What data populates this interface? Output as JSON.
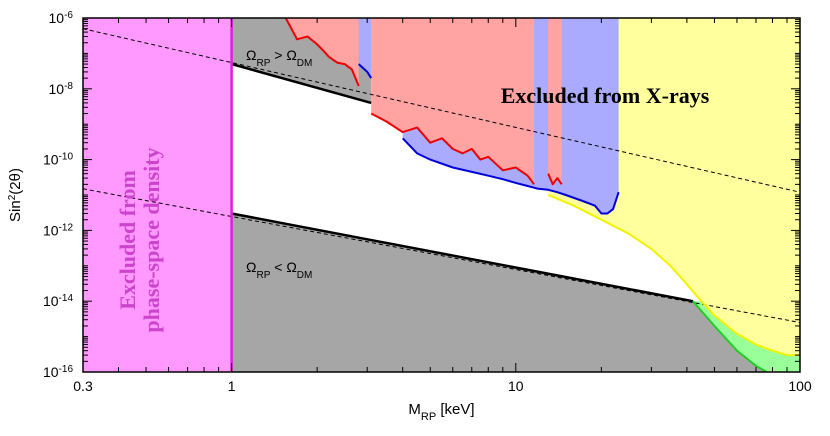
{
  "chart_data": {
    "type": "area",
    "xlabel": "M",
    "xlabel_sub": "RP",
    "xlabel_unit": " [keV]",
    "ylabel": "Sin",
    "ylabel_sup": "2",
    "ylabel_rest": "(2θ)",
    "x_scale": "log",
    "y_scale": "log",
    "xlim": [
      0.3,
      100
    ],
    "ylim": [
      1e-16,
      1e-06
    ],
    "x_ticks": [
      {
        "value": 0.3,
        "label": "0.3"
      },
      {
        "value": 1,
        "label": "1"
      },
      {
        "value": 10,
        "label": "10"
      },
      {
        "value": 100,
        "label": "100"
      }
    ],
    "y_ticks": [
      {
        "value": 1e-16,
        "base": "10",
        "exp": "-16"
      },
      {
        "value": 1e-14,
        "base": "10",
        "exp": "-14"
      },
      {
        "value": 1e-12,
        "base": "10",
        "exp": "-12"
      },
      {
        "value": 1e-10,
        "base": "10",
        "exp": "-10"
      },
      {
        "value": 1e-08,
        "base": "10",
        "exp": "-8"
      },
      {
        "value": 1e-06,
        "base": "10",
        "exp": "-6"
      }
    ],
    "annotations": {
      "upper": {
        "prefix": "Ω",
        "sub1": "RP",
        "op": " > Ω",
        "sub2": "DM"
      },
      "lower": {
        "prefix": "Ω",
        "sub1": "RP",
        "op": " < Ω",
        "sub2": "DM"
      },
      "xrays": "Excluded from X-rays",
      "phase_line1": "Excluded from",
      "phase_line2": "phase-space density"
    },
    "colors": {
      "phase_space": "#ff99ff",
      "phase_line": "#dd22dd",
      "grey": "#a6a6a6",
      "yellow": "#ffff9e",
      "yellow_line": "#f2f200",
      "green": "#99ff99",
      "green_line": "#22cc22",
      "red_fill": "#ffa3a3",
      "red_line": "#ee0000",
      "blue_fill": "#aaaaff",
      "blue_line": "#0000dd",
      "purple_text": "#cc44cc"
    },
    "series": [
      {
        "id": "phase_space_bound",
        "x": [
          1,
          1
        ],
        "y": [
          1e-16,
          1e-06
        ]
      },
      {
        "id": "upper_black_line",
        "x": [
          1,
          3.1
        ],
        "y": [
          5e-08,
          4e-09
        ]
      },
      {
        "id": "lower_black_line",
        "x": [
          1,
          42
        ],
        "y": [
          3e-12,
          1e-14
        ]
      },
      {
        "id": "upper_dashed_line",
        "x": [
          0.3,
          100
        ],
        "y": [
          5e-07,
          1.2e-11
        ]
      },
      {
        "id": "lower_dashed_line",
        "x": [
          0.3,
          100
        ],
        "y": [
          1.5e-11,
          2.5e-15
        ]
      },
      {
        "id": "red_line_a",
        "x": [
          1.55,
          1.7,
          1.85,
          2.0,
          2.1,
          2.2,
          2.35,
          2.5,
          2.65,
          2.8
        ],
        "y": [
          1e-06,
          2.5e-07,
          3e-07,
          1.8e-07,
          1.2e-07,
          8e-08,
          5.5e-08,
          5e-08,
          3.5e-08,
          1.2e-08
        ]
      },
      {
        "id": "blue_line_a",
        "x": [
          2.8,
          3.0,
          3.1
        ],
        "y": [
          5e-08,
          3e-08,
          2e-08
        ]
      },
      {
        "id": "red_line_b",
        "x": [
          3.1,
          3.5,
          4.0,
          4.5,
          5.0,
          5.5,
          6.0,
          6.5,
          7.0,
          7.5,
          8.0,
          9.0,
          10.0,
          11.0,
          11.6
        ],
        "y": [
          2e-09,
          1.2e-09,
          6e-10,
          8e-10,
          3e-10,
          4e-10,
          2e-10,
          1.5e-10,
          2e-10,
          1e-10,
          1.2e-10,
          5e-11,
          6e-11,
          3.5e-11,
          2e-11
        ]
      },
      {
        "id": "blue_line_main",
        "x": [
          4.0,
          4.5,
          5.0,
          6.0,
          7.0,
          8.0,
          9.0,
          10.0,
          11.0,
          12.0,
          13.0,
          14.0,
          15.0,
          17.0,
          19.0,
          20.0,
          21.0,
          22.0,
          23.0
        ],
        "y": [
          4e-10,
          1.5e-10,
          1e-10,
          6e-11,
          4.5e-11,
          3.5e-11,
          2.8e-11,
          2.2e-11,
          1.8e-11,
          1.5e-11,
          1.4e-11,
          1.2e-11,
          1e-11,
          7e-12,
          5e-12,
          3e-12,
          3e-12,
          4e-12,
          1.2e-11
        ]
      },
      {
        "id": "red_line_c",
        "x": [
          13,
          13.5,
          14,
          14.5
        ],
        "y": [
          4e-11,
          2e-11,
          3e-11,
          2e-11
        ]
      },
      {
        "id": "yellow_boundary",
        "x": [
          13,
          16,
          20,
          25,
          30,
          35,
          40,
          45,
          50,
          60,
          70,
          80,
          90,
          100
        ],
        "y": [
          1e-11,
          5e-12,
          2e-12,
          8e-13,
          3e-13,
          1e-13,
          3e-14,
          1e-14,
          4e-15,
          1.2e-15,
          6e-16,
          4e-16,
          3e-16,
          3e-16
        ]
      },
      {
        "id": "green_boundary",
        "x": [
          42,
          50,
          60,
          70,
          80,
          90,
          100
        ],
        "y": [
          1e-14,
          2e-15,
          4e-16,
          1.5e-16,
          8e-17,
          5e-17,
          4e-17
        ]
      }
    ]
  }
}
